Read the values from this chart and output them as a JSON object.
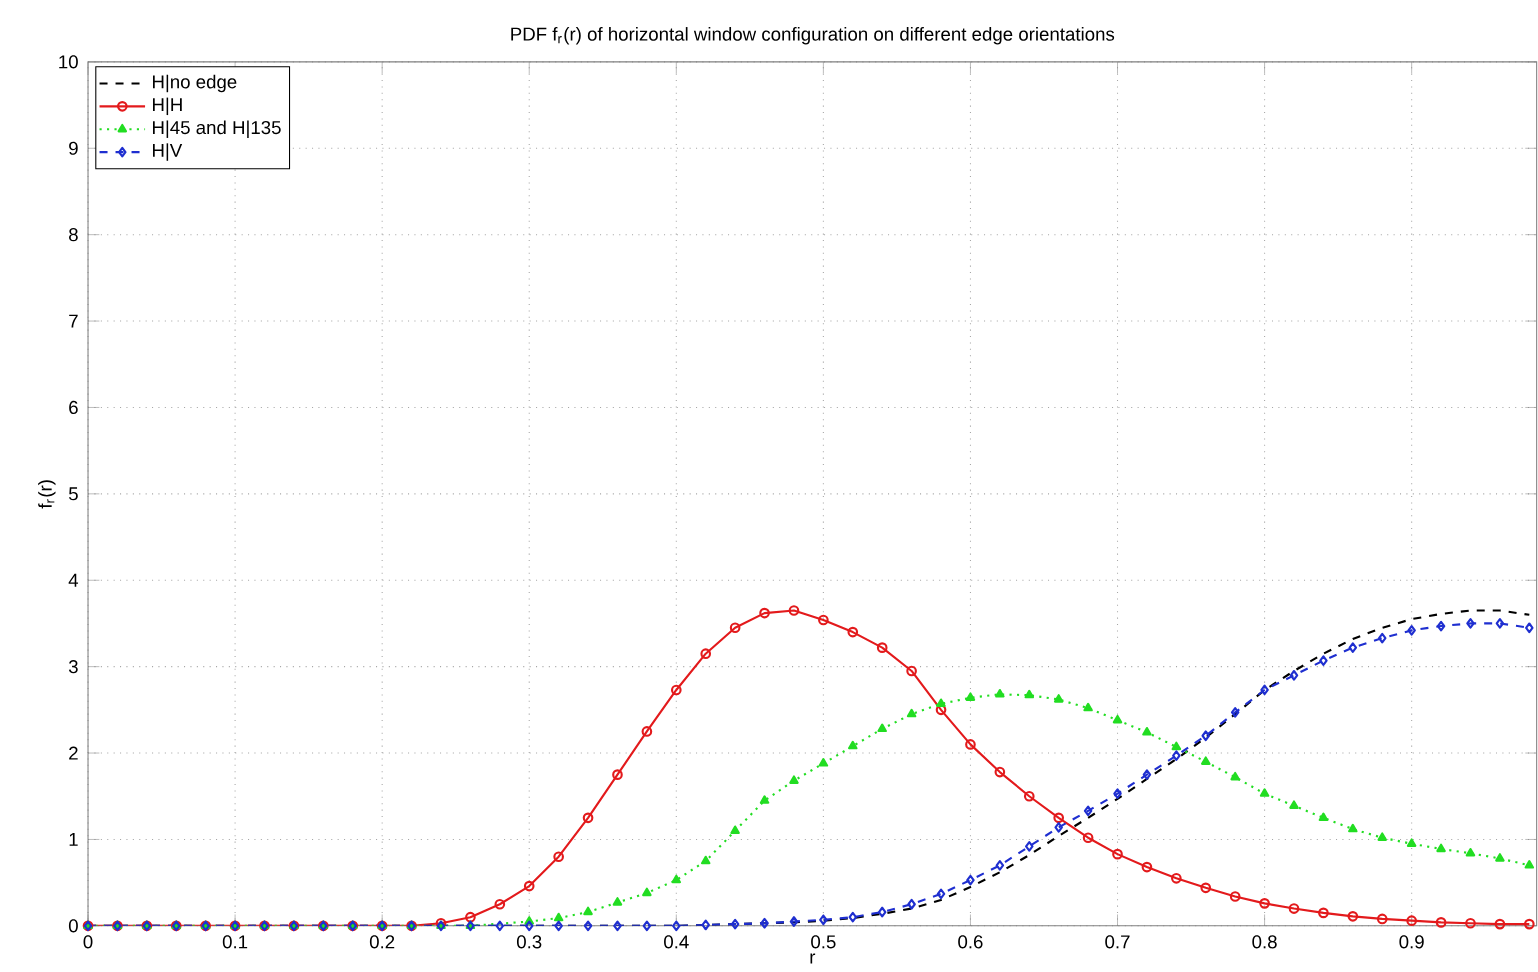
{
  "chart_data": {
    "type": "line",
    "title": "PDF f$_{r}$(r) of horizontal window configuration on different edge orientations",
    "xlabel": "r",
    "ylabel": "f$_{r}$(r)",
    "x": [
      0,
      0.02,
      0.04,
      0.06,
      0.08,
      0.1,
      0.12,
      0.14,
      0.16,
      0.18,
      0.2,
      0.22,
      0.24,
      0.26,
      0.28,
      0.3,
      0.32,
      0.34,
      0.36,
      0.38,
      0.4,
      0.42,
      0.44,
      0.46,
      0.48,
      0.5,
      0.52,
      0.54,
      0.56,
      0.58,
      0.6,
      0.62,
      0.64,
      0.66,
      0.68,
      0.7,
      0.72,
      0.74,
      0.76,
      0.78,
      0.8,
      0.82,
      0.84,
      0.86,
      0.88,
      0.9,
      0.92,
      0.94,
      0.96,
      0.98
    ],
    "series": [
      {
        "name": "H|no edge",
        "color": "#000000",
        "marker": "none",
        "line_style": "dashed",
        "values": [
          0,
          0,
          0,
          0,
          0,
          0,
          0,
          0,
          0,
          0,
          0,
          0,
          0,
          0,
          0,
          0,
          0,
          0,
          0,
          0,
          0,
          null,
          null,
          0.03,
          0.04,
          0.06,
          0.09,
          0.14,
          0.2,
          0.3,
          0.45,
          0.62,
          0.82,
          1.04,
          1.25,
          1.47,
          1.7,
          1.93,
          2.18,
          2.45,
          2.73,
          2.95,
          3.15,
          3.32,
          3.45,
          3.55,
          3.61,
          3.65,
          3.65,
          3.6
        ]
      },
      {
        "name": "H|H",
        "color": "#e31a1c",
        "marker": "circle",
        "line_style": "solid",
        "values": [
          0,
          0,
          0,
          0,
          0,
          0,
          0,
          0,
          0,
          0,
          0,
          0,
          0.03,
          0.1,
          0.25,
          0.46,
          0.8,
          1.25,
          1.75,
          2.25,
          2.73,
          3.15,
          3.45,
          3.62,
          3.65,
          3.54,
          3.4,
          3.22,
          2.95,
          2.5,
          2.1,
          1.78,
          1.5,
          1.25,
          1.02,
          0.83,
          0.68,
          0.55,
          0.44,
          0.34,
          0.26,
          0.2,
          0.15,
          0.11,
          0.08,
          0.06,
          0.04,
          0.03,
          0.02,
          0.02
        ]
      },
      {
        "name": "H|45 and H|135",
        "color": "#22dd22",
        "marker": "triangle",
        "line_style": "dotted",
        "values": [
          0,
          0,
          0,
          0,
          0,
          0,
          0,
          0,
          0,
          0,
          0,
          0,
          0,
          0,
          null,
          0.05,
          0.09,
          0.16,
          0.27,
          0.38,
          0.53,
          0.75,
          1.1,
          1.45,
          1.68,
          1.88,
          2.08,
          2.28,
          2.45,
          2.57,
          2.64,
          2.68,
          2.67,
          2.62,
          2.52,
          2.38,
          2.24,
          2.07,
          1.9,
          1.72,
          1.53,
          1.39,
          1.25,
          1.12,
          1.02,
          0.95,
          0.89,
          0.84,
          0.78,
          0.7
        ]
      },
      {
        "name": "H|V",
        "color": "#1f2fd0",
        "marker": "diamond",
        "line_style": "dashed",
        "values": [
          0,
          0,
          0,
          0,
          0,
          0,
          0,
          0,
          0,
          0,
          0,
          0,
          0,
          0,
          0,
          0,
          0,
          0,
          0,
          0,
          0,
          0.01,
          0.02,
          0.03,
          0.05,
          0.07,
          0.1,
          0.16,
          0.25,
          0.37,
          0.53,
          0.7,
          0.92,
          1.14,
          1.33,
          1.53,
          1.75,
          1.97,
          2.2,
          2.47,
          2.73,
          2.9,
          3.07,
          3.22,
          3.33,
          3.42,
          3.47,
          3.5,
          3.5,
          3.45
        ]
      }
    ],
    "xlim": [
      0,
      0.985
    ],
    "ylim": [
      0,
      10
    ],
    "xticks": [
      0,
      0.1,
      0.2,
      0.3,
      0.4,
      0.5,
      0.6,
      0.7,
      0.8,
      0.9
    ],
    "yticks": [
      0,
      1,
      2,
      3,
      4,
      5,
      6,
      7,
      8,
      9,
      10
    ],
    "grid": true,
    "legend": "top left"
  }
}
